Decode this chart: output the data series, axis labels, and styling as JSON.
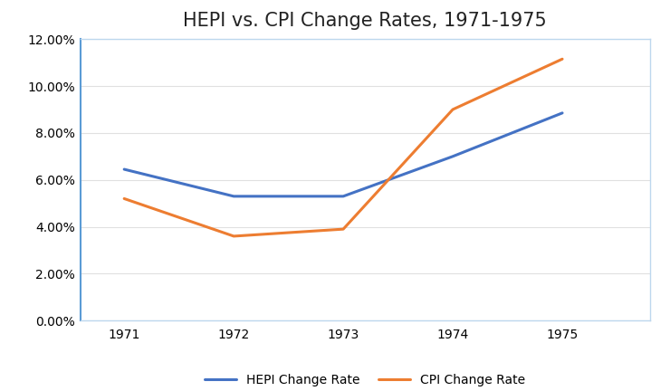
{
  "title": "HEPI vs. CPI Change Rates, 1971-1975",
  "years": [
    1971,
    1972,
    1973,
    1974,
    1975
  ],
  "hepi": [
    0.0645,
    0.053,
    0.053,
    0.07,
    0.0885
  ],
  "cpi": [
    0.052,
    0.036,
    0.039,
    0.09,
    0.1115
  ],
  "hepi_color": "#4472C4",
  "cpi_color": "#ED7D31",
  "hepi_label": "HEPI Change Rate",
  "cpi_label": "CPI Change Rate",
  "ylim": [
    0.0,
    0.12
  ],
  "yticks": [
    0.0,
    0.02,
    0.04,
    0.06,
    0.08,
    0.1,
    0.12
  ],
  "xlim": [
    1970.6,
    1975.8
  ],
  "line_width": 2.2,
  "title_fontsize": 15,
  "legend_fontsize": 10,
  "tick_fontsize": 10,
  "background_color": "#ffffff",
  "plot_bg_color": "#ffffff",
  "grid_color": "#e0e0e0",
  "left_spine_color": "#5B9BD5",
  "box_border_color": "#BDD7EE"
}
